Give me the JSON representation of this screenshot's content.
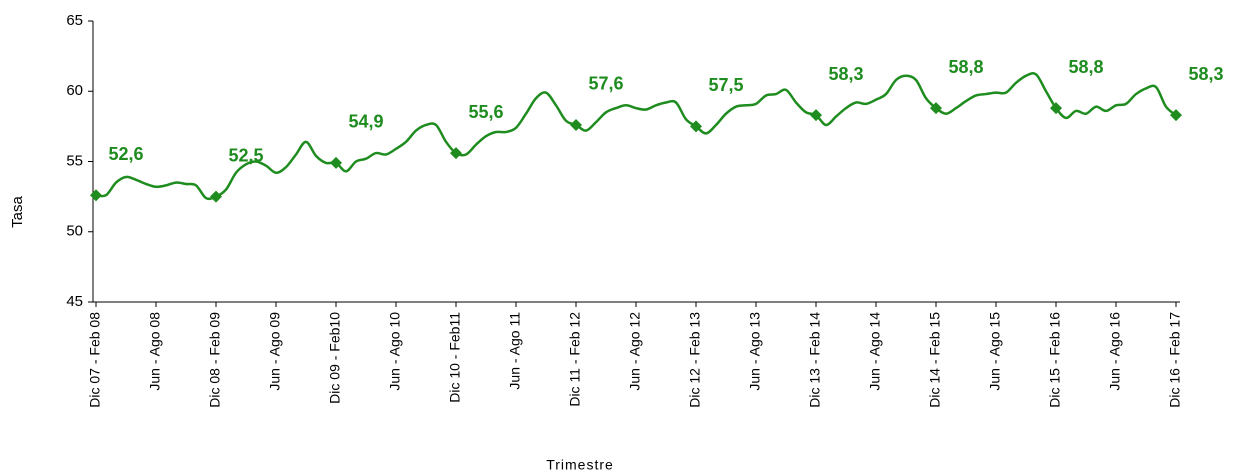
{
  "chart_data": {
    "type": "line",
    "y_label": "Tasa",
    "x_label": "Trimestre",
    "categories": [
      "Dic 07 - Feb 08",
      null,
      null,
      null,
      null,
      null,
      "Jun - Ago 08",
      null,
      null,
      null,
      null,
      null,
      "Dic 08 - Feb 09",
      null,
      null,
      null,
      null,
      null,
      "Jun - Ago 09",
      null,
      null,
      null,
      null,
      null,
      "Dic 09 - Feb10",
      null,
      null,
      null,
      null,
      null,
      "Jun - Ago 10",
      null,
      null,
      null,
      null,
      null,
      "Dic 10 - Feb11",
      null,
      null,
      null,
      null,
      null,
      "Jun - Ago 11",
      null,
      null,
      null,
      null,
      null,
      "Dic 11 - Feb 12",
      null,
      null,
      null,
      null,
      null,
      "Jun - Ago 12",
      null,
      null,
      null,
      null,
      null,
      "Dic 12 - Feb 13",
      null,
      null,
      null,
      null,
      null,
      "Jun - Ago 13",
      null,
      null,
      null,
      null,
      null,
      "Dic 13 - Feb 14",
      null,
      null,
      null,
      null,
      null,
      "Jun - Ago 14",
      null,
      null,
      null,
      null,
      null,
      "Dic 14 - Feb 15",
      null,
      null,
      null,
      null,
      null,
      "Jun - Ago 15",
      null,
      null,
      null,
      null,
      null,
      "Dic 15 - Feb 16",
      null,
      null,
      null,
      null,
      null,
      "Jun - Ago 16",
      null,
      null,
      null,
      null,
      null,
      "Dic 16 - Feb 17"
    ],
    "series": [
      {
        "name": "Tasa",
        "color": "#1e8c1e",
        "values": [
          52.6,
          52.6,
          53.5,
          53.9,
          53.7,
          53.4,
          53.2,
          53.3,
          53.5,
          53.4,
          53.3,
          52.4,
          52.5,
          53.0,
          54.2,
          54.8,
          55.0,
          54.7,
          54.2,
          54.6,
          55.5,
          56.4,
          55.4,
          54.9,
          54.9,
          54.3,
          55.0,
          55.2,
          55.6,
          55.5,
          55.9,
          56.4,
          57.2,
          57.6,
          57.6,
          56.4,
          55.6,
          55.5,
          56.2,
          56.8,
          57.1,
          57.1,
          57.4,
          58.4,
          59.5,
          59.9,
          59.0,
          57.9,
          57.6,
          57.2,
          57.8,
          58.5,
          58.8,
          59.0,
          58.8,
          58.7,
          59.0,
          59.2,
          59.2,
          58.0,
          57.5,
          57.0,
          57.6,
          58.4,
          58.9,
          59.0,
          59.1,
          59.7,
          59.8,
          60.1,
          59.2,
          58.5,
          58.3,
          57.6,
          58.2,
          58.8,
          59.2,
          59.1,
          59.4,
          59.8,
          60.8,
          61.1,
          60.8,
          59.5,
          58.8,
          58.4,
          58.8,
          59.3,
          59.7,
          59.8,
          59.9,
          59.9,
          60.6,
          61.1,
          61.2,
          60.0,
          58.8,
          58.1,
          58.6,
          58.4,
          58.9,
          58.6,
          59.0,
          59.1,
          59.8,
          60.2,
          60.3,
          58.9,
          58.3
        ],
        "value_labels": [
          "52,6",
          null,
          null,
          null,
          null,
          null,
          null,
          null,
          null,
          null,
          null,
          null,
          "52,5",
          null,
          null,
          null,
          null,
          null,
          null,
          null,
          null,
          null,
          null,
          null,
          "54,9",
          null,
          null,
          null,
          null,
          null,
          null,
          null,
          null,
          null,
          null,
          null,
          "55,6",
          null,
          null,
          null,
          null,
          null,
          null,
          null,
          null,
          null,
          null,
          null,
          "57,6",
          null,
          null,
          null,
          null,
          null,
          null,
          null,
          null,
          null,
          null,
          null,
          "57,5",
          null,
          null,
          null,
          null,
          null,
          null,
          null,
          null,
          null,
          null,
          null,
          "58,3",
          null,
          null,
          null,
          null,
          null,
          null,
          null,
          null,
          null,
          null,
          null,
          "58,8",
          null,
          null,
          null,
          null,
          null,
          null,
          null,
          null,
          null,
          null,
          null,
          "58,8",
          null,
          null,
          null,
          null,
          null,
          null,
          null,
          null,
          null,
          null,
          null,
          "58,3"
        ]
      }
    ],
    "ylim": [
      45,
      65
    ],
    "yticks": [
      45,
      50,
      55,
      60,
      65
    ],
    "grid": false,
    "smooth": true
  }
}
